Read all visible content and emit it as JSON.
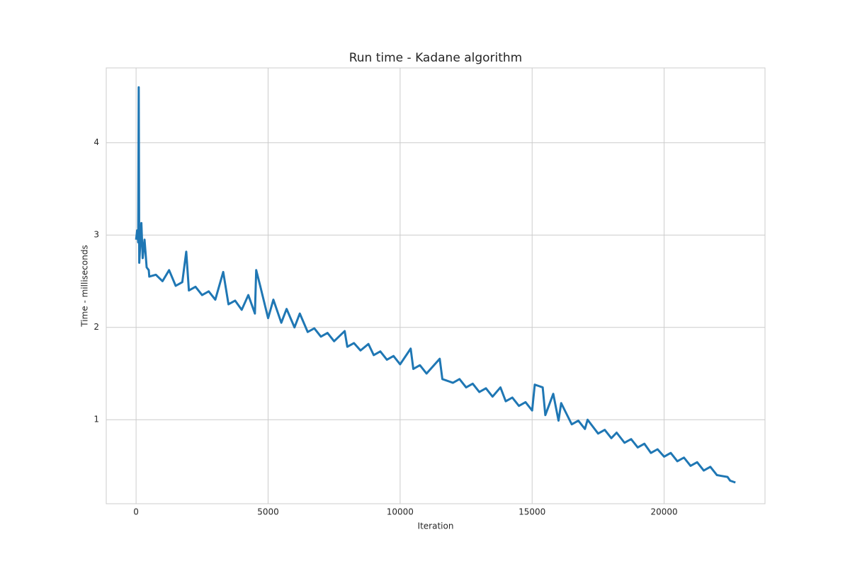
{
  "chart_data": {
    "type": "line",
    "title": "Run time - Kadane algorithm",
    "xlabel": "Iteration",
    "ylabel": "Time - milliseconds",
    "color": "#1f77b4",
    "grid": true,
    "x": [
      0,
      40,
      80,
      100,
      120,
      200,
      250,
      320,
      400,
      480,
      500,
      750,
      1000,
      1250,
      1500,
      1750,
      1900,
      2000,
      2250,
      2500,
      2750,
      3000,
      3200,
      3300,
      3500,
      3750,
      4000,
      4250,
      4500,
      4550,
      4700,
      5000,
      5200,
      5500,
      5700,
      6000,
      6200,
      6500,
      6750,
      7000,
      7250,
      7500,
      7900,
      8000,
      8250,
      8500,
      8800,
      9000,
      9250,
      9500,
      9750,
      10000,
      10400,
      10500,
      10750,
      11000,
      11500,
      11600,
      12000,
      12250,
      12500,
      12750,
      13000,
      13250,
      13500,
      13800,
      14000,
      14250,
      14500,
      14750,
      15000,
      15100,
      15400,
      15500,
      15800,
      16000,
      16100,
      16500,
      16750,
      17000,
      17100,
      17500,
      17750,
      18000,
      18200,
      18500,
      18750,
      19000,
      19250,
      19500,
      19750,
      20000,
      20250,
      20500,
      20750,
      21000,
      21250,
      21500,
      21750,
      22000,
      22400,
      22500,
      22700
    ],
    "values": [
      2.95,
      3.05,
      2.92,
      4.6,
      2.7,
      3.13,
      2.75,
      2.95,
      2.65,
      2.62,
      2.55,
      2.57,
      2.5,
      2.62,
      2.45,
      2.49,
      2.82,
      2.4,
      2.44,
      2.35,
      2.39,
      2.3,
      2.5,
      2.6,
      2.25,
      2.29,
      2.19,
      2.35,
      2.15,
      2.62,
      2.45,
      2.1,
      2.3,
      2.05,
      2.2,
      2.0,
      2.15,
      1.95,
      1.99,
      1.9,
      1.94,
      1.85,
      1.96,
      1.79,
      1.83,
      1.75,
      1.82,
      1.7,
      1.74,
      1.65,
      1.69,
      1.6,
      1.77,
      1.55,
      1.59,
      1.5,
      1.66,
      1.44,
      1.4,
      1.44,
      1.35,
      1.39,
      1.3,
      1.34,
      1.25,
      1.35,
      1.2,
      1.24,
      1.15,
      1.19,
      1.1,
      1.38,
      1.35,
      1.05,
      1.28,
      0.99,
      1.18,
      0.95,
      0.99,
      0.9,
      1.0,
      0.85,
      0.89,
      0.8,
      0.86,
      0.75,
      0.79,
      0.7,
      0.74,
      0.64,
      0.68,
      0.6,
      0.64,
      0.55,
      0.59,
      0.5,
      0.54,
      0.45,
      0.49,
      0.4,
      0.38,
      0.34,
      0.32
    ],
    "xlim": [
      -1130,
      23820
    ],
    "ylim": [
      0.09,
      4.81
    ],
    "xticks": [
      0,
      5000,
      10000,
      15000,
      20000
    ],
    "yticks": [
      1,
      2,
      3,
      4
    ]
  }
}
